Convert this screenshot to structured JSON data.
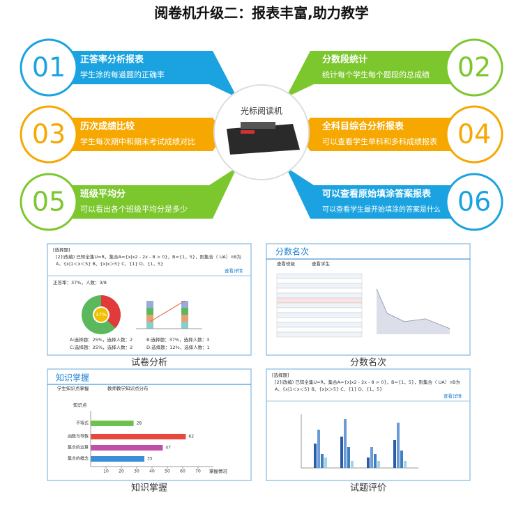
{
  "title": "阅卷机升级二：报表丰富,助力教学",
  "center_label": "光标阅读机",
  "features": [
    {
      "number": "01",
      "title": "正答率分析报表",
      "desc": "学生涂的每道题的正确率"
    },
    {
      "number": "02",
      "title": "分数段统计",
      "desc": "统计每个学生每个题段的总成绩"
    },
    {
      "number": "03",
      "title": "历次成绩比较",
      "desc": "学生每次期中和期末考试成绩对比"
    },
    {
      "number": "04",
      "title": "全科目综合分析报表",
      "desc": "可以查看学生单科和多科成绩报表"
    },
    {
      "number": "05",
      "title": "班级平均分",
      "desc": "可以看出各个班级平均分是多少"
    },
    {
      "number": "06",
      "title": "可以查看原始填涂答案报表",
      "desc": "可以查看学生最开始填涂的答案是什么"
    }
  ],
  "panels": [
    {
      "caption": "试卷分析",
      "question_tag": "[选择题]",
      "question": "[2](改编) 已知全集U=R，集合A={x|x2 - 2x - 8 > 0}，B={1，5}，则集合（ UA）∩B为",
      "options": "A、{x|1＜x＜5}    B、{x|x＞5}    C、{1}    D、{1，5}",
      "detail_link": "查看详情",
      "stats": "正答率：37%，人数：3/8",
      "pie": {
        "value": 37,
        "label": "37%"
      },
      "legend": [
        "A:选择题：25%，选择人数：2",
        "B:选择题：37%，选择人数：3",
        "C:选择题：25%，选择人数：2",
        "D:选择题：12%，选择人数：1"
      ]
    },
    {
      "caption": "分数名次",
      "heading": "分数名次",
      "tabs": [
        "查看班级",
        "查看学生"
      ]
    },
    {
      "caption": "知识掌握",
      "heading": "知识掌握",
      "tabs": [
        "学生知识点掌握",
        "教师教学知识点分布"
      ],
      "y_label": "知识点",
      "x_label": "掌握情况",
      "categories": [
        "不等式",
        "函数与导数",
        "集合的运算",
        "集合的概念"
      ],
      "values": [
        28,
        62,
        47,
        35
      ],
      "colors": [
        "#6cc24a",
        "#e8473d",
        "#c04fa8",
        "#3a8fd6"
      ],
      "xlim": [
        0,
        80
      ],
      "xticks": [
        10,
        20,
        30,
        40,
        50,
        60,
        70
      ]
    },
    {
      "caption": "试题评价",
      "question_tag": "[选择题]",
      "question": "[2](改编) 已知全集U=R，集合A={x|x2 - 2x - 8 > 0}，B={1，5}，则集合（ UA）∩B为",
      "options": "A、{x|1＜x＜5}    B、{x|x＞5}    C、{1}    D、{1，5}",
      "detail_link": "查看详情"
    }
  ]
}
